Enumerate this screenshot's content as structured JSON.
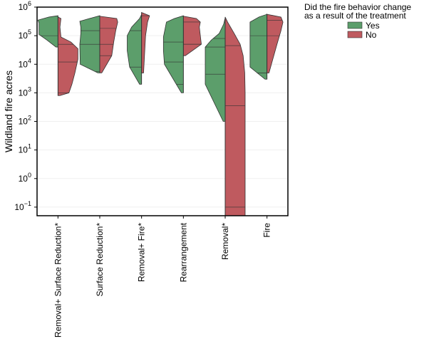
{
  "chart_data": {
    "type": "violin",
    "ylabel": "Wildland fire acres",
    "yscale": "log",
    "ylim": [
      0.05,
      1000000
    ],
    "yticks": [
      0.1,
      1,
      10,
      100,
      1000,
      10000,
      100000,
      1000000
    ],
    "ytick_labels": [
      {
        "base": "10",
        "exp": "−1"
      },
      {
        "base": "10",
        "exp": "0"
      },
      {
        "base": "10",
        "exp": "1"
      },
      {
        "base": "10",
        "exp": "2"
      },
      {
        "base": "10",
        "exp": "3"
      },
      {
        "base": "10",
        "exp": "4"
      },
      {
        "base": "10",
        "exp": "5"
      },
      {
        "base": "10",
        "exp": "6"
      }
    ],
    "grid": true,
    "legend": {
      "title_lines": [
        "Did the fire behavior change",
        "as a result of the treatment"
      ],
      "placement": "outside-top-right",
      "entries": [
        {
          "label": "Yes",
          "color": "#5c9e6b"
        },
        {
          "label": "No",
          "color": "#bf5a5f"
        }
      ]
    },
    "categories": [
      "Removal+ Surface Reduction*",
      "Surface Reduction*",
      "Removal+ Fire*",
      "Rearrangement",
      "Removal*",
      "Fire"
    ],
    "series": [
      {
        "name": "Yes",
        "color": "#5c9e6b",
        "quartiles": [
          [
            15000,
            40000,
            100000
          ],
          [
            5500,
            50000,
            150000
          ],
          [
            1500,
            8000,
            150000
          ],
          [
            2000,
            12000,
            60000
          ],
          [
            4500,
            40000,
            80000
          ],
          [
            5000,
            5000,
            100000
          ]
        ],
        "profiles": [
          [
            [
              40000,
              0.1
            ],
            [
              70000,
              0.55
            ],
            [
              110000,
              0.95
            ],
            [
              180000,
              0.95
            ],
            [
              280000,
              0.95
            ],
            [
              350000,
              1.0
            ],
            [
              450000,
              0.45
            ],
            [
              500000,
              0.0
            ]
          ],
          [
            [
              5000,
              0.1
            ],
            [
              10000,
              0.98
            ],
            [
              50000,
              1.0
            ],
            [
              120000,
              0.95
            ],
            [
              200000,
              0.95
            ],
            [
              320000,
              1.0
            ],
            [
              420000,
              0.4
            ],
            [
              500000,
              0.0
            ]
          ],
          [
            [
              2000,
              0.1
            ],
            [
              8000,
              0.6
            ],
            [
              30000,
              0.72
            ],
            [
              100000,
              0.72
            ],
            [
              200000,
              0.5
            ],
            [
              400000,
              0.1
            ],
            [
              550000,
              0.0
            ]
          ],
          [
            [
              1000,
              0.1
            ],
            [
              10000,
              0.95
            ],
            [
              30000,
              1.0
            ],
            [
              90000,
              1.0
            ],
            [
              200000,
              0.9
            ],
            [
              300000,
              0.85
            ],
            [
              400000,
              0.45
            ],
            [
              500000,
              0.0
            ]
          ],
          [
            [
              100,
              0.1
            ],
            [
              2000,
              1.0
            ],
            [
              25000,
              1.0
            ],
            [
              40000,
              1.0
            ],
            [
              70000,
              0.7
            ],
            [
              120000,
              0.3
            ],
            [
              250000,
              0.08
            ],
            [
              420000,
              0.0
            ]
          ],
          [
            [
              3000,
              0.1
            ],
            [
              8000,
              0.85
            ],
            [
              50000,
              0.85
            ],
            [
              150000,
              0.85
            ],
            [
              300000,
              0.85
            ],
            [
              450000,
              0.4
            ],
            [
              560000,
              0.0
            ]
          ]
        ]
      },
      {
        "name": "No",
        "color": "#bf5a5f",
        "quartiles": [
          [
            1000,
            12000,
            50000
          ],
          [
            20000,
            50000,
            180000
          ],
          [
            5000,
            5000,
            500000
          ],
          [
            50000,
            50000,
            300000
          ],
          [
            0.1,
            350,
            45000
          ],
          [
            5000,
            100000,
            350000
          ]
        ],
        "profiles": [
          [
            [
              800,
              0.1
            ],
            [
              1000,
              0.55
            ],
            [
              2000,
              0.7
            ],
            [
              5000,
              0.85
            ],
            [
              15000,
              1.0
            ],
            [
              35000,
              1.0
            ],
            [
              60000,
              0.65
            ],
            [
              90000,
              0.15
            ],
            [
              200000,
              0.1
            ],
            [
              400000,
              0.15
            ],
            [
              450000,
              0.0
            ]
          ],
          [
            [
              5000,
              0.1
            ],
            [
              20000,
              0.6
            ],
            [
              60000,
              0.7
            ],
            [
              150000,
              0.8
            ],
            [
              300000,
              0.9
            ],
            [
              400000,
              0.85
            ],
            [
              480000,
              0.0
            ]
          ],
          [
            [
              5000,
              0.1
            ],
            [
              100000,
              0.2
            ],
            [
              300000,
              0.3
            ],
            [
              500000,
              0.4
            ],
            [
              650000,
              0.0
            ]
          ],
          [
            [
              20000,
              0.1
            ],
            [
              50000,
              0.9
            ],
            [
              200000,
              0.8
            ],
            [
              300000,
              0.85
            ],
            [
              400000,
              0.65
            ],
            [
              480000,
              0.0
            ]
          ],
          [
            [
              0.05,
              1.0
            ],
            [
              1,
              1.0
            ],
            [
              1000,
              1.0
            ],
            [
              5000,
              0.98
            ],
            [
              20000,
              0.9
            ],
            [
              50000,
              0.75
            ],
            [
              120000,
              0.45
            ],
            [
              300000,
              0.12
            ],
            [
              450000,
              0.0
            ]
          ],
          [
            [
              5000,
              0.1
            ],
            [
              50000,
              0.5
            ],
            [
              150000,
              0.7
            ],
            [
              300000,
              0.8
            ],
            [
              450000,
              0.7
            ],
            [
              560000,
              0.0
            ]
          ]
        ]
      }
    ]
  }
}
